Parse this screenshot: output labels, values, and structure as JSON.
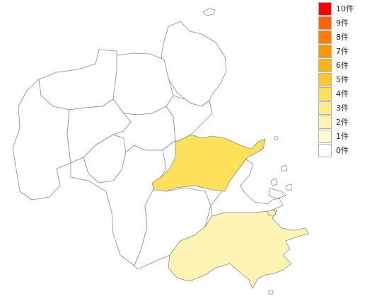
{
  "legend": {
    "items": [
      {
        "label": "10件",
        "color": "#ff0000"
      },
      {
        "label": "9件",
        "color": "#ff6400"
      },
      {
        "label": "8件",
        "color": "#ff7d00"
      },
      {
        "label": "7件",
        "color": "#ff9900"
      },
      {
        "label": "6件",
        "color": "#ffb319"
      },
      {
        "label": "5件",
        "color": "#ffc832"
      },
      {
        "label": "4件",
        "color": "#ffe05a"
      },
      {
        "label": "3件",
        "color": "#ffeb8c"
      },
      {
        "label": "2件",
        "color": "#fff4b4"
      },
      {
        "label": "1件",
        "color": "#fffad2"
      },
      {
        "label": "0件",
        "color": "#ffffff"
      }
    ]
  },
  "map": {
    "regions": [
      {
        "id": "central-north",
        "count": 4
      },
      {
        "id": "southeast",
        "count": 2
      }
    ],
    "colors": {
      "border": "#8a8a8a",
      "empty": "#ffffff"
    }
  }
}
